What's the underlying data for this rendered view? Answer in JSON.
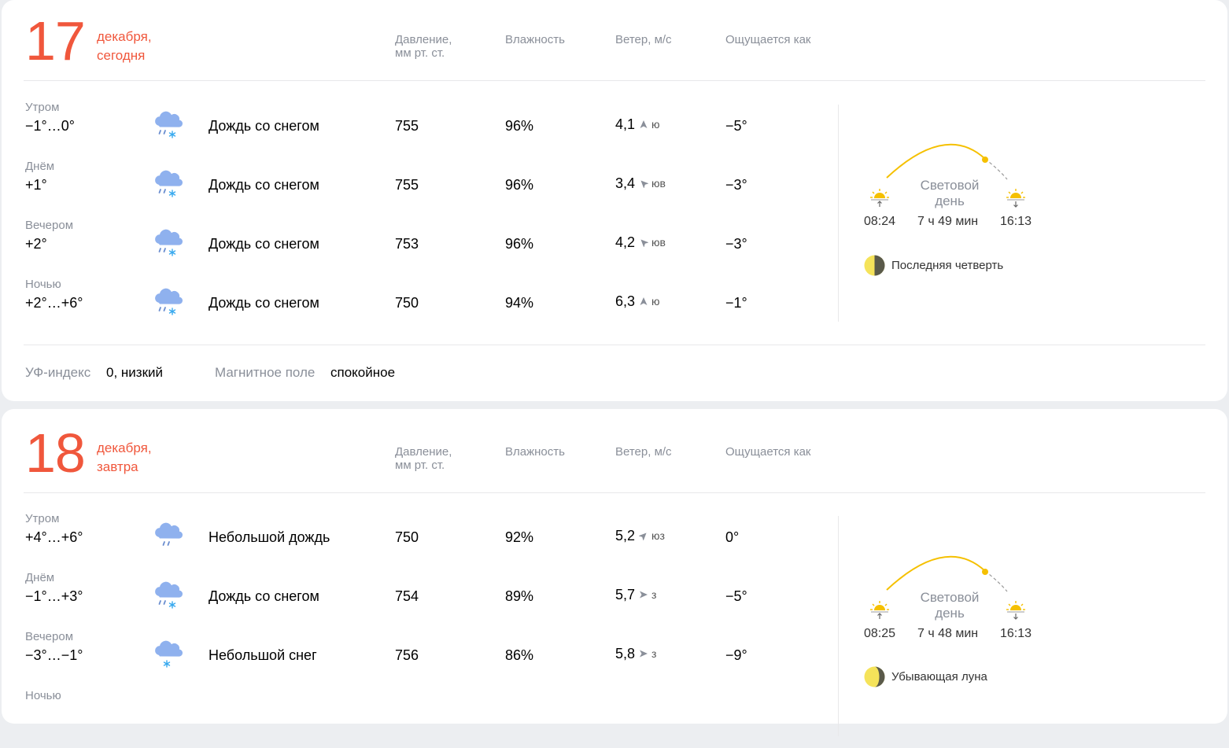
{
  "column_headers": {
    "pressure_line1": "Давление,",
    "pressure_line2": "мм рт. ст.",
    "humidity": "Влажность",
    "wind": "Ветер, м/с",
    "feels": "Ощущается как"
  },
  "days": [
    {
      "day": "17",
      "month_line": "декабря,",
      "relative": "сегодня",
      "rows": [
        {
          "part": "Утром",
          "temp": "−1°…0°",
          "icon": "rain-snow-icon",
          "condition": "Дождь со снегом",
          "pressure": "755",
          "humidity": "96%",
          "wind_speed": "4,1",
          "wind_dir": "ю",
          "wind_icon": "arrow-north-icon",
          "feels": "−5°"
        },
        {
          "part": "Днём",
          "temp": "+1°",
          "icon": "rain-snow-icon",
          "condition": "Дождь со снегом",
          "pressure": "755",
          "humidity": "96%",
          "wind_speed": "3,4",
          "wind_dir": "юв",
          "wind_icon": "arrow-northwest-icon",
          "feels": "−3°"
        },
        {
          "part": "Вечером",
          "temp": "+2°",
          "icon": "rain-snow-icon",
          "condition": "Дождь со снегом",
          "pressure": "753",
          "humidity": "96%",
          "wind_speed": "4,2",
          "wind_dir": "юв",
          "wind_icon": "arrow-northwest-icon",
          "feels": "−3°"
        },
        {
          "part": "Ночью",
          "temp": "+2°…+6°",
          "icon": "rain-snow-icon",
          "condition": "Дождь со снегом",
          "pressure": "750",
          "humidity": "94%",
          "wind_speed": "6,3",
          "wind_dir": "ю",
          "wind_icon": "arrow-north-icon",
          "feels": "−1°"
        }
      ],
      "sun": {
        "daylight_line1": "Световой",
        "daylight_line2": "день",
        "sunrise": "08:24",
        "duration": "7 ч 49 мин",
        "sunset": "16:13"
      },
      "moon": {
        "label": "Последняя четверть",
        "icon": "moon-last-quarter-icon"
      },
      "footer": {
        "uv_label": "УФ-индекс",
        "uv_value": "0, низкий",
        "mag_label": "Магнитное поле",
        "mag_value": "спокойное"
      }
    },
    {
      "day": "18",
      "month_line": "декабря,",
      "relative": "завтра",
      "rows": [
        {
          "part": "Утром",
          "temp": "+4°…+6°",
          "icon": "light-rain-icon",
          "condition": "Небольшой дождь",
          "pressure": "750",
          "humidity": "92%",
          "wind_speed": "5,2",
          "wind_dir": "юз",
          "wind_icon": "arrow-northeast-icon",
          "feels": "0°"
        },
        {
          "part": "Днём",
          "temp": "−1°…+3°",
          "icon": "rain-snow-icon",
          "condition": "Дождь со снегом",
          "pressure": "754",
          "humidity": "89%",
          "wind_speed": "5,7",
          "wind_dir": "з",
          "wind_icon": "arrow-east-icon",
          "feels": "−5°"
        },
        {
          "part": "Вечером",
          "temp": "−3°…−1°",
          "icon": "light-snow-icon",
          "condition": "Небольшой снег",
          "pressure": "756",
          "humidity": "86%",
          "wind_speed": "5,8",
          "wind_dir": "з",
          "wind_icon": "arrow-east-icon",
          "feels": "−9°"
        },
        {
          "part": "Ночью",
          "temp": "",
          "icon": "",
          "condition": "",
          "pressure": "",
          "humidity": "",
          "wind_speed": "",
          "wind_dir": "",
          "wind_icon": "",
          "feels": ""
        }
      ],
      "sun": {
        "daylight_line1": "Световой",
        "daylight_line2": "день",
        "sunrise": "08:25",
        "duration": "7 ч 48 мин",
        "sunset": "16:13"
      },
      "moon": {
        "label": "Убывающая луна",
        "icon": "moon-waning-icon"
      }
    }
  ],
  "colors": {
    "accent": "#f0573c",
    "muted": "#8a8f99",
    "sun": "#f5c000",
    "cloud": "#8fb1ee",
    "snow": "#36a8ee"
  }
}
